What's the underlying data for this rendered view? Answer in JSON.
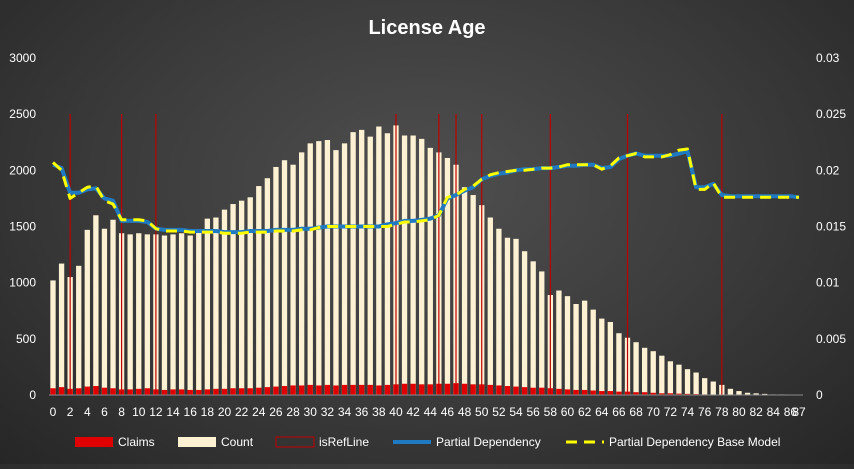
{
  "chart_data": {
    "type": "bar",
    "title": "License Age",
    "x": [
      0,
      1,
      2,
      3,
      4,
      5,
      6,
      7,
      8,
      9,
      10,
      11,
      12,
      13,
      14,
      15,
      16,
      17,
      18,
      19,
      20,
      21,
      22,
      23,
      24,
      25,
      26,
      27,
      28,
      29,
      30,
      31,
      32,
      33,
      34,
      35,
      36,
      37,
      38,
      39,
      40,
      41,
      42,
      43,
      44,
      45,
      46,
      47,
      48,
      49,
      50,
      51,
      52,
      53,
      54,
      55,
      56,
      57,
      58,
      59,
      60,
      61,
      62,
      63,
      64,
      65,
      66,
      67,
      68,
      69,
      70,
      71,
      72,
      73,
      74,
      75,
      76,
      77,
      78,
      79,
      80,
      81,
      82,
      83,
      84,
      85,
      86,
      87
    ],
    "x_tick_labels": [
      "0",
      "2",
      "4",
      "6",
      "8",
      "10",
      "12",
      "14",
      "16",
      "18",
      "20",
      "22",
      "24",
      "26",
      "28",
      "30",
      "32",
      "34",
      "36",
      "38",
      "40",
      "42",
      "44",
      "46",
      "48",
      "50",
      "52",
      "54",
      "56",
      "58",
      "60",
      "62",
      "64",
      "66",
      "68",
      "70",
      "72",
      "74",
      "76",
      "78",
      "80",
      "82",
      "84",
      "86",
      "87"
    ],
    "y_left_ticks": [
      "0",
      "500",
      "1000",
      "1500",
      "2000",
      "2500",
      "3000"
    ],
    "y_right_ticks": [
      "0",
      "0.005",
      "0.01",
      "0.015",
      "0.02",
      "0.025",
      "0.03"
    ],
    "ylim_left": [
      0,
      3000
    ],
    "ylim_right": [
      0,
      0.03
    ],
    "grid": false,
    "legend_position": "bottom",
    "series": [
      {
        "name": "Claims",
        "axis": "left",
        "type": "bar",
        "color": "#e00000",
        "values": [
          60,
          70,
          55,
          60,
          75,
          80,
          65,
          60,
          50,
          50,
          55,
          60,
          50,
          45,
          50,
          50,
          45,
          45,
          50,
          55,
          55,
          60,
          60,
          60,
          65,
          70,
          75,
          80,
          85,
          85,
          90,
          85,
          90,
          85,
          90,
          90,
          90,
          90,
          85,
          90,
          95,
          100,
          100,
          95,
          95,
          100,
          100,
          105,
          100,
          95,
          95,
          90,
          85,
          80,
          75,
          70,
          65,
          65,
          60,
          55,
          50,
          45,
          45,
          40,
          35,
          35,
          30,
          30,
          25,
          25,
          20,
          15,
          15,
          12,
          10,
          8,
          5,
          4,
          3,
          2,
          1,
          1,
          1,
          0,
          0,
          0,
          0,
          0
        ]
      },
      {
        "name": "Count",
        "axis": "left",
        "type": "bar",
        "color": "#fdf1d4",
        "values": [
          1020,
          1170,
          1050,
          1150,
          1470,
          1600,
          1480,
          1560,
          1440,
          1430,
          1440,
          1430,
          1430,
          1420,
          1430,
          1440,
          1420,
          1460,
          1570,
          1580,
          1650,
          1700,
          1730,
          1760,
          1860,
          1930,
          2030,
          2090,
          2050,
          2160,
          2240,
          2260,
          2270,
          2180,
          2240,
          2340,
          2360,
          2300,
          2390,
          2330,
          2400,
          2310,
          2310,
          2280,
          2200,
          2160,
          2110,
          2050,
          1850,
          1780,
          1690,
          1580,
          1480,
          1400,
          1390,
          1280,
          1190,
          1100,
          890,
          930,
          880,
          810,
          840,
          760,
          680,
          650,
          550,
          510,
          470,
          420,
          390,
          350,
          300,
          270,
          230,
          200,
          150,
          120,
          90,
          55,
          35,
          20,
          15,
          10,
          5,
          5,
          4,
          3
        ]
      },
      {
        "name": "isRefLine",
        "axis": "left",
        "type": "bar",
        "color": "#c00000",
        "positions": [
          2,
          8,
          12,
          40,
          45,
          47,
          50,
          58,
          67,
          78
        ]
      },
      {
        "name": "Partial Dependency",
        "axis": "right",
        "type": "line",
        "color": "#1f7ac2",
        "values": [
          0.0205,
          0.0202,
          0.018,
          0.018,
          0.0183,
          0.0184,
          0.0175,
          0.0173,
          0.0155,
          0.0155,
          0.0155,
          0.0154,
          0.0148,
          0.0147,
          0.0147,
          0.0147,
          0.0146,
          0.0146,
          0.0146,
          0.0146,
          0.0145,
          0.0145,
          0.0145,
          0.0146,
          0.0146,
          0.0146,
          0.0147,
          0.0147,
          0.0147,
          0.0148,
          0.0148,
          0.0149,
          0.015,
          0.015,
          0.015,
          0.015,
          0.015,
          0.015,
          0.015,
          0.0152,
          0.0153,
          0.0155,
          0.0155,
          0.0156,
          0.0157,
          0.016,
          0.0175,
          0.0178,
          0.0182,
          0.0185,
          0.0192,
          0.0195,
          0.0197,
          0.0198,
          0.02,
          0.0201,
          0.0201,
          0.0202,
          0.0202,
          0.0203,
          0.0204,
          0.0204,
          0.0205,
          0.0205,
          0.0202,
          0.0203,
          0.021,
          0.0213,
          0.0215,
          0.0213,
          0.0213,
          0.0213,
          0.0213,
          0.0215,
          0.0217,
          0.0185,
          0.0185,
          0.0188,
          0.0178,
          0.0177,
          0.0177,
          0.0177,
          0.0177,
          0.0177,
          0.0177,
          0.0177,
          0.0177,
          0.0176
        ]
      },
      {
        "name": "Partial Dependency Base Model",
        "axis": "right",
        "type": "line",
        "color": "#ffff00",
        "values": [
          0.0207,
          0.02,
          0.0175,
          0.018,
          0.0185,
          0.0186,
          0.0173,
          0.017,
          0.0156,
          0.0156,
          0.0156,
          0.0155,
          0.0148,
          0.0146,
          0.0146,
          0.0146,
          0.0145,
          0.0145,
          0.0145,
          0.0145,
          0.0144,
          0.0144,
          0.0144,
          0.0145,
          0.0145,
          0.0145,
          0.0146,
          0.0146,
          0.0146,
          0.0147,
          0.0147,
          0.0149,
          0.015,
          0.015,
          0.015,
          0.015,
          0.015,
          0.015,
          0.015,
          0.015,
          0.0152,
          0.0154,
          0.0154,
          0.0155,
          0.0156,
          0.016,
          0.0176,
          0.0178,
          0.0183,
          0.0186,
          0.0192,
          0.0196,
          0.0198,
          0.0199,
          0.02,
          0.02,
          0.0201,
          0.0202,
          0.0202,
          0.0203,
          0.0205,
          0.0205,
          0.0205,
          0.0205,
          0.0201,
          0.0204,
          0.0211,
          0.0213,
          0.0215,
          0.0212,
          0.0212,
          0.0212,
          0.0214,
          0.0218,
          0.0219,
          0.0183,
          0.0183,
          0.0189,
          0.0176,
          0.0176,
          0.0176,
          0.0176,
          0.0176,
          0.0176,
          0.0176,
          0.0176,
          0.0176,
          0.0176
        ]
      }
    ]
  }
}
